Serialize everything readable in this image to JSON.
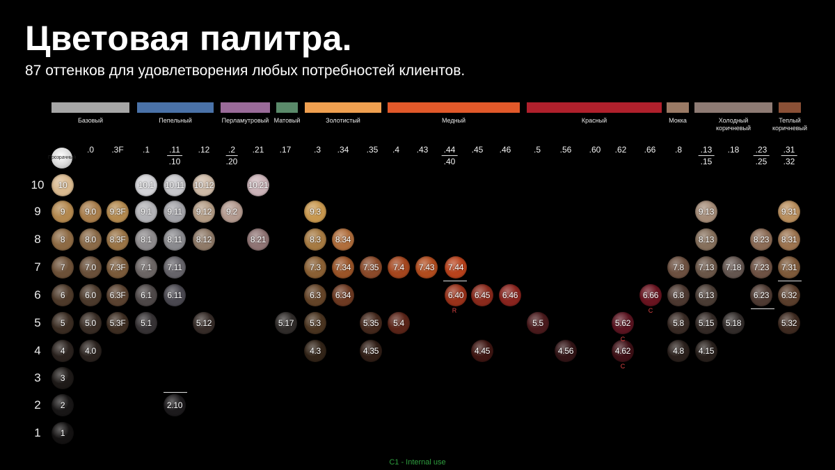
{
  "header": {
    "title": "Цветовая палитра.",
    "subtitle": "87 оттенков для удовлетворения любых потребностей клиентов."
  },
  "natural_label": "Прозрачный",
  "categories": [
    {
      "label": "Базовый",
      "color": "#a6a6a6"
    },
    {
      "label": "Пепельный",
      "color": "#4a72a8"
    },
    {
      "label": "Перламутровый",
      "color": "#9a6b99"
    },
    {
      "label": "Матовый",
      "color": "#5a8a6a"
    },
    {
      "label": "Золотистый",
      "color": "#f0a050"
    },
    {
      "label": "Медный",
      "color": "#e2592a"
    },
    {
      "label": "Красный",
      "color": "#b0202c"
    },
    {
      "label": "Мокка",
      "color": "#9a7a65"
    },
    {
      "label": "Холодный коричневый",
      "color": "#8e7b74"
    },
    {
      "label": "Теплый коричневый",
      "color": "#8a5036"
    }
  ],
  "codes": [
    {
      "top": ".0"
    },
    {
      "top": ".3F"
    },
    {
      "top": ".1"
    },
    {
      "top": ".11",
      "bottom": ".10"
    },
    {
      "top": ".12"
    },
    {
      "top": ".2",
      "bottom": ".20"
    },
    {
      "top": ".21"
    },
    {
      "top": ".17"
    },
    {
      "top": ".3"
    },
    {
      "top": ".34"
    },
    {
      "top": ".35"
    },
    {
      "top": ".4"
    },
    {
      "top": ".43"
    },
    {
      "top": ".44",
      "bottom": ".40"
    },
    {
      "top": ".45"
    },
    {
      "top": ".46"
    },
    {
      "top": ".5"
    },
    {
      "top": ".56"
    },
    {
      "top": ".60"
    },
    {
      "top": ".62"
    },
    {
      "top": ".66"
    },
    {
      "top": ".8"
    },
    {
      "top": ".13",
      "bottom": ".15"
    },
    {
      "top": ".18"
    },
    {
      "top": ".23",
      "bottom": ".25"
    },
    {
      "top": ".31",
      "bottom": ".32"
    }
  ],
  "levels": [
    "10",
    "9",
    "8",
    "7",
    "6",
    "5",
    "4",
    "3",
    "2",
    "1"
  ],
  "swatches": [
    {
      "label": "10",
      "color": "#d9b98f"
    },
    {
      "label": "10.1",
      "color": "#d2d2d6"
    },
    {
      "label": "10.11",
      "color": "#c6c6ca"
    },
    {
      "label": "10.12",
      "color": "#cdb9a6"
    },
    {
      "label": "10.21",
      "color": "#cbb3b8"
    },
    {
      "label": "9",
      "color": "#b3884f"
    },
    {
      "label": "9.0",
      "color": "#a97e4c"
    },
    {
      "label": "9.3F",
      "color": "#b48a4f"
    },
    {
      "label": "9.1",
      "color": "#b2b2b6"
    },
    {
      "label": "9.11",
      "color": "#a3a3a8"
    },
    {
      "label": "9.12",
      "color": "#b49d86"
    },
    {
      "label": "9.2",
      "color": "#b39a8f"
    },
    {
      "label": "9.3",
      "color": "#c8984f"
    },
    {
      "label": "9.13",
      "color": "#a58c78"
    },
    {
      "label": "9.31",
      "color": "#b98f5e"
    },
    {
      "label": "8",
      "color": "#8d6a44"
    },
    {
      "label": "8.0",
      "color": "#8a6a48"
    },
    {
      "label": "8.3F",
      "color": "#9a7446"
    },
    {
      "label": "8.1",
      "color": "#8d8a8c"
    },
    {
      "label": "8.11",
      "color": "#8a8a8e"
    },
    {
      "label": "8.12",
      "color": "#8f7a68"
    },
    {
      "label": "8.21",
      "color": "#8f7474"
    },
    {
      "label": "8.3",
      "color": "#a67a42"
    },
    {
      "label": "8.34",
      "color": "#b06e3c"
    },
    {
      "label": "8.13",
      "color": "#86705c"
    },
    {
      "label": "8.23",
      "color": "#8c6c56"
    },
    {
      "label": "8.31",
      "color": "#9c7450"
    },
    {
      "label": "7",
      "color": "#6d5138"
    },
    {
      "label": "7.0",
      "color": "#6a503a"
    },
    {
      "label": "7.3F",
      "color": "#7a5a3a"
    },
    {
      "label": "7.1",
      "color": "#6b6564"
    },
    {
      "label": "7.11",
      "color": "#66646a"
    },
    {
      "label": "7.3",
      "color": "#8a6034"
    },
    {
      "label": "7.34",
      "color": "#9a5428"
    },
    {
      "label": "7.35",
      "color": "#8a4a2a"
    },
    {
      "label": "7.4",
      "color": "#a4461e"
    },
    {
      "label": "7.43",
      "color": "#b14c1e"
    },
    {
      "label": "7.44",
      "color": "#b8421c"
    },
    {
      "label": "7.8",
      "color": "#6c5040"
    },
    {
      "label": "7.13",
      "color": "#6a5648"
    },
    {
      "label": "7.18",
      "color": "#645650"
    },
    {
      "label": "7.23",
      "color": "#6e5244"
    },
    {
      "label": "7.31",
      "color": "#7e5a3a"
    },
    {
      "label": "6",
      "color": "#4e3a2a"
    },
    {
      "label": "6.0",
      "color": "#4c3a2c"
    },
    {
      "label": "6.3F",
      "color": "#5a4230"
    },
    {
      "label": "6.1",
      "color": "#4e4848"
    },
    {
      "label": "6.11",
      "color": "#4a4850"
    },
    {
      "label": "6.3",
      "color": "#644428"
    },
    {
      "label": "6.34",
      "color": "#6e3a22"
    },
    {
      "label": "6.40",
      "color": "#9a321a"
    },
    {
      "label": "6.45",
      "color": "#8a2a1c"
    },
    {
      "label": "6.46",
      "color": "#8a241e"
    },
    {
      "label": "6.66",
      "color": "#6a1420"
    },
    {
      "label": "6.8",
      "color": "#4c3830"
    },
    {
      "label": "6.13",
      "color": "#4a3c34"
    },
    {
      "label": "6.23",
      "color": "#4e3a32"
    },
    {
      "label": "6.32",
      "color": "#5a3e2c"
    },
    {
      "label": "5",
      "color": "#3a2c22"
    },
    {
      "label": "5.0",
      "color": "#382c24"
    },
    {
      "label": "5.3F",
      "color": "#3e2e22"
    },
    {
      "label": "5.1",
      "color": "#363234"
    },
    {
      "label": "5.12",
      "color": "#362c28"
    },
    {
      "label": "5.17",
      "color": "#302c2a"
    },
    {
      "label": "5.3",
      "color": "#4a3420"
    },
    {
      "label": "5.35",
      "color": "#44281c"
    },
    {
      "label": "5.4",
      "color": "#5a2418"
    },
    {
      "label": "5.5",
      "color": "#4a1a1c"
    },
    {
      "label": "5.62",
      "color": "#5a1420"
    },
    {
      "label": "5.8",
      "color": "#382a24"
    },
    {
      "label": "5.15",
      "color": "#342a26"
    },
    {
      "label": "5.18",
      "color": "#322c2a"
    },
    {
      "label": "5.32",
      "color": "#3e2a20"
    },
    {
      "label": "4",
      "color": "#2a221e"
    },
    {
      "label": "4.0",
      "color": "#2a221e"
    },
    {
      "label": "4.3",
      "color": "#322418"
    },
    {
      "label": "4.35",
      "color": "#301e16"
    },
    {
      "label": "4.45",
      "color": "#3e1612"
    },
    {
      "label": "4.56",
      "color": "#321416"
    },
    {
      "label": "4.62",
      "color": "#3e1016"
    },
    {
      "label": "4.8",
      "color": "#2a201c"
    },
    {
      "label": "4.15",
      "color": "#28201c"
    },
    {
      "label": "3",
      "color": "#1e1a18"
    },
    {
      "label": "2.10",
      "color": "#1c1a1c"
    },
    {
      "label": "2",
      "color": "#181616"
    },
    {
      "label": "1",
      "color": "#141212"
    }
  ],
  "tags": [
    "R",
    "C",
    "C",
    "C"
  ],
  "footer": "C1 - Internal use"
}
